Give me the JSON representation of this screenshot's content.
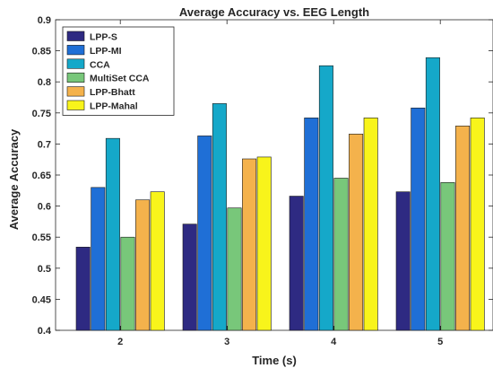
{
  "chart_data": {
    "type": "bar",
    "title": "Average Accuracy vs. EEG Length",
    "xlabel": "Time (s)",
    "ylabel": "Average Accuracy",
    "categories": [
      "2",
      "3",
      "4",
      "5"
    ],
    "ylim": [
      0.4,
      0.9
    ],
    "yticks": [
      "0.4",
      "0.45",
      "0.5",
      "0.55",
      "0.6",
      "0.65",
      "0.7",
      "0.75",
      "0.8",
      "0.85",
      "0.9"
    ],
    "grid": false,
    "legend_position": "top-left",
    "series": [
      {
        "name": "LPP-S",
        "color": "#2e2a82",
        "values": [
          0.534,
          0.571,
          0.616,
          0.623
        ]
      },
      {
        "name": "LPP-MI",
        "color": "#1f6fd6",
        "values": [
          0.63,
          0.713,
          0.742,
          0.758
        ]
      },
      {
        "name": "CCA",
        "color": "#15a8c9",
        "values": [
          0.709,
          0.765,
          0.826,
          0.839
        ]
      },
      {
        "name": "MultiSet CCA",
        "color": "#78c77a",
        "values": [
          0.55,
          0.597,
          0.645,
          0.638
        ]
      },
      {
        "name": "LPP-Bhatt",
        "color": "#f4b24c",
        "values": [
          0.61,
          0.676,
          0.716,
          0.729
        ]
      },
      {
        "name": "LPP-Mahal",
        "color": "#f8f41b",
        "values": [
          0.623,
          0.679,
          0.742,
          0.742
        ]
      }
    ]
  }
}
